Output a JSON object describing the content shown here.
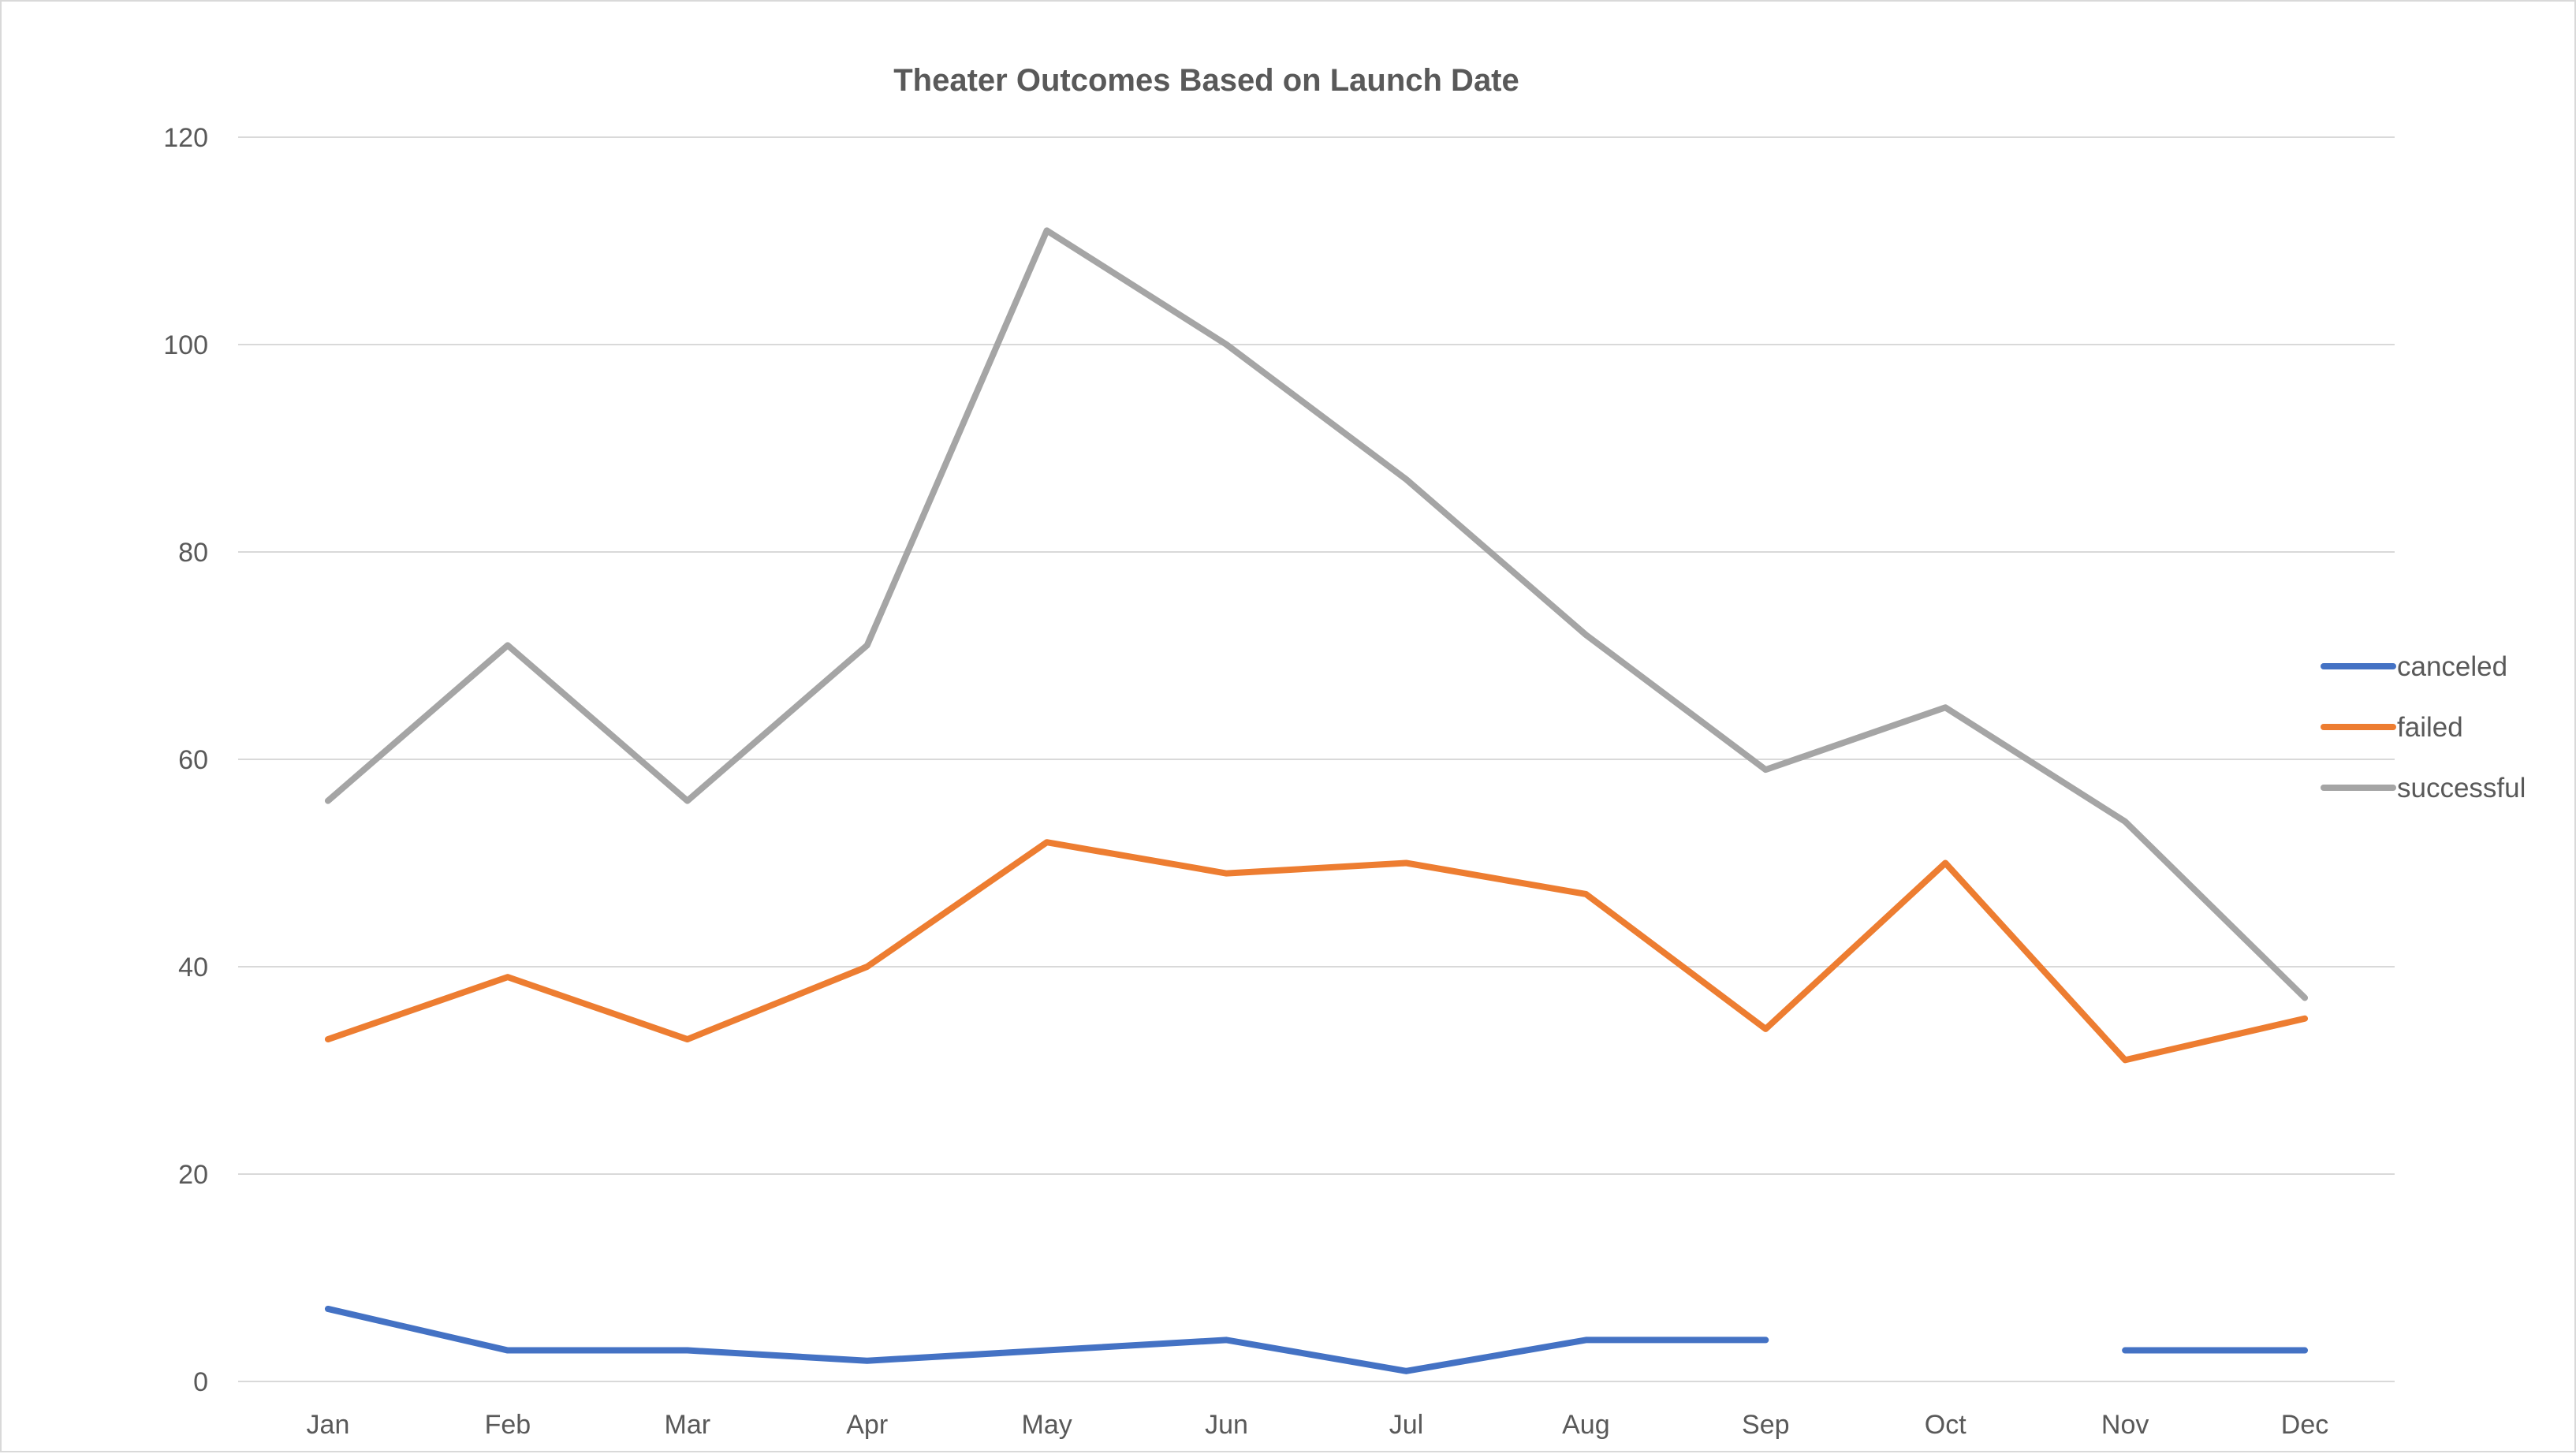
{
  "chart_data": {
    "type": "line",
    "title": "Theater Outcomes Based on Launch Date",
    "xlabel": "",
    "ylabel": "",
    "categories": [
      "Jan",
      "Feb",
      "Mar",
      "Apr",
      "May",
      "Jun",
      "Jul",
      "Aug",
      "Sep",
      "Oct",
      "Nov",
      "Dec"
    ],
    "ylim": [
      0,
      120
    ],
    "yticks": [
      "0",
      "20",
      "40",
      "60",
      "80",
      "100",
      "120"
    ],
    "grid": true,
    "legend_position": "right",
    "series": [
      {
        "name": "canceled",
        "color": "#4472c4",
        "values": [
          7,
          3,
          3,
          2,
          3,
          4,
          1,
          4,
          4,
          null,
          3,
          3
        ]
      },
      {
        "name": "failed",
        "color": "#ed7d31",
        "values": [
          33,
          39,
          33,
          40,
          52,
          49,
          50,
          47,
          34,
          50,
          31,
          35
        ]
      },
      {
        "name": "successful",
        "color": "#a5a5a5",
        "values": [
          56,
          71,
          56,
          71,
          111,
          100,
          87,
          72,
          59,
          65,
          54,
          37
        ]
      }
    ]
  }
}
